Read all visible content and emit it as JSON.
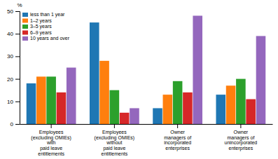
{
  "chart_data": {
    "type": "bar",
    "categories": [
      "Employees\n(excluding OMIEs)\nwith\npaid leave\nentitlements",
      "Employees\n(excluding OMIEs)\nwithout\npaid leave\nentitlements",
      "Owner\nmanagers of\nincorporated\nenterprises",
      "Owner\nmanagers of\nunincorporated\nenterprises"
    ],
    "series": [
      {
        "name": "less than 1 year",
        "values": [
          18,
          45,
          7,
          13
        ]
      },
      {
        "name": "1–2 years",
        "values": [
          21,
          28,
          13,
          17
        ]
      },
      {
        "name": "3–5 years",
        "values": [
          21,
          15,
          19,
          20
        ]
      },
      {
        "name": "6–9 years",
        "values": [
          14,
          5,
          14,
          11
        ]
      },
      {
        "name": "10 years and over",
        "values": [
          25,
          7,
          48,
          39
        ]
      }
    ],
    "ylabel": "%",
    "ylim": [
      0,
      50
    ],
    "yticks": [
      0,
      10,
      20,
      30,
      40,
      50
    ],
    "grid": false,
    "legend": "top-left"
  }
}
